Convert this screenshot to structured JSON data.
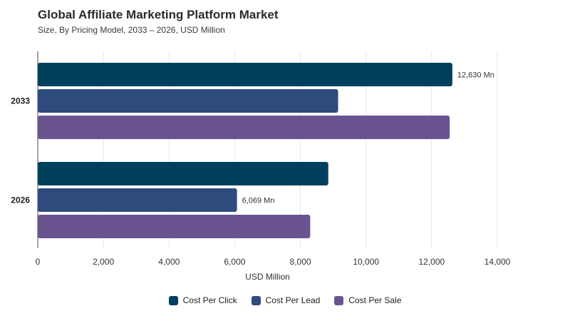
{
  "chart_data": {
    "type": "bar",
    "orientation": "horizontal",
    "title": "Global Affiliate Marketing Platform Market",
    "subtitle": "Size, By Pricing Model, 2033 – 2026, USD Million",
    "xlabel": "USD Million",
    "ylabel": "",
    "xlim": [
      0,
      14000
    ],
    "xticks": [
      0,
      2000,
      4000,
      6000,
      8000,
      10000,
      12000,
      14000
    ],
    "xtick_labels": [
      "0",
      "2,000",
      "4,000",
      "6,000",
      "8,000",
      "10,000",
      "12,000",
      "14,000"
    ],
    "grid": true,
    "legend_position": "bottom-center",
    "categories": [
      "2033",
      "2026"
    ],
    "series": [
      {
        "name": "Cost Per Click",
        "color": "#00405c",
        "values": [
          12630,
          8850
        ]
      },
      {
        "name": "Cost Per Lead",
        "color": "#2e4b7e",
        "values": [
          9150,
          6069
        ]
      },
      {
        "name": "Cost Per Sale",
        "color": "#6a5490",
        "values": [
          12550,
          8300
        ]
      }
    ],
    "annotations": [
      {
        "category": "2033",
        "series": "Cost Per Click",
        "text": "12,630 Mn"
      },
      {
        "category": "2026",
        "series": "Cost Per Lead",
        "text": "6,069 Mn"
      }
    ]
  }
}
